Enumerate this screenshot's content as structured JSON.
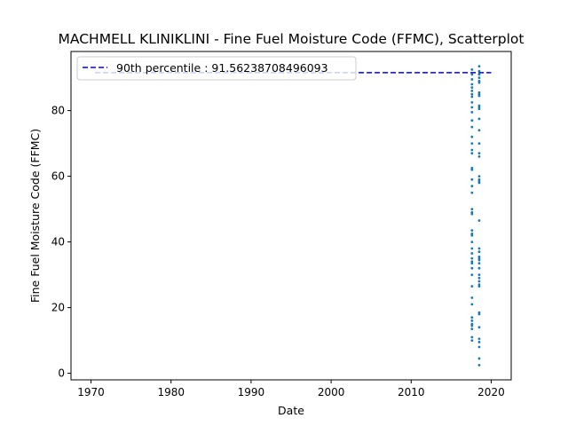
{
  "chart_data": {
    "type": "scatter",
    "title": "MACHMELL KLINIKLINI - Fine Fuel Moisture Code (FFMC), Scatterplot",
    "xlabel": "Date",
    "ylabel": "Fine Fuel Moisture Code (FFMC)",
    "xlim": [
      1967.5,
      2022.5
    ],
    "ylim": [
      -2,
      98
    ],
    "xticks": [
      1970,
      1980,
      1990,
      2000,
      2010,
      2020
    ],
    "yticks": [
      0,
      20,
      40,
      60,
      80
    ],
    "grid": false,
    "legend_position": "top-left",
    "reference_line": {
      "label": "90th percentile : 91.56238708496093",
      "value": 91.56238708496093,
      "x_range": [
        1970.5,
        2020
      ],
      "color": "#0000ff",
      "style": "dashed"
    },
    "series": [
      {
        "color": "#1f77b4",
        "points": [
          [
            2017.6,
            92.5
          ],
          [
            2017.6,
            91.0
          ],
          [
            2017.6,
            89.5
          ],
          [
            2017.6,
            88.0
          ],
          [
            2017.6,
            87.0
          ],
          [
            2017.6,
            86.0
          ],
          [
            2017.6,
            85.0
          ],
          [
            2017.6,
            84.2
          ],
          [
            2017.6,
            82.5
          ],
          [
            2017.6,
            81.0
          ],
          [
            2017.6,
            79.5
          ],
          [
            2017.6,
            77.0
          ],
          [
            2017.6,
            75.0
          ],
          [
            2017.6,
            72.0
          ],
          [
            2017.6,
            70.0
          ],
          [
            2017.6,
            68.0
          ],
          [
            2017.6,
            67.0
          ],
          [
            2017.6,
            62.5
          ],
          [
            2017.6,
            62.0
          ],
          [
            2017.6,
            59.0
          ],
          [
            2017.6,
            57.0
          ],
          [
            2017.6,
            55.0
          ],
          [
            2017.6,
            50.0
          ],
          [
            2017.6,
            49.0
          ],
          [
            2017.6,
            48.5
          ],
          [
            2017.6,
            43.5
          ],
          [
            2017.6,
            42.5
          ],
          [
            2017.6,
            42.0
          ],
          [
            2017.6,
            40.0
          ],
          [
            2017.6,
            38.0
          ],
          [
            2017.6,
            36.5
          ],
          [
            2017.6,
            35.0
          ],
          [
            2017.6,
            34.0
          ],
          [
            2017.6,
            33.5
          ],
          [
            2017.6,
            32.0
          ],
          [
            2017.6,
            30.0
          ],
          [
            2017.6,
            26.5
          ],
          [
            2017.6,
            23.0
          ],
          [
            2017.6,
            21.0
          ],
          [
            2017.6,
            17.0
          ],
          [
            2017.6,
            16.0
          ],
          [
            2017.6,
            15.0
          ],
          [
            2017.6,
            14.5
          ],
          [
            2017.6,
            13.5
          ],
          [
            2017.6,
            11.0
          ],
          [
            2017.6,
            10.0
          ],
          [
            2018.5,
            93.5
          ],
          [
            2018.5,
            92.0
          ],
          [
            2018.5,
            91.0
          ],
          [
            2018.5,
            90.0
          ],
          [
            2018.5,
            89.0
          ],
          [
            2018.5,
            88.5
          ],
          [
            2018.5,
            85.5
          ],
          [
            2018.5,
            85.0
          ],
          [
            2018.5,
            84.5
          ],
          [
            2018.5,
            81.5
          ],
          [
            2018.5,
            81.0
          ],
          [
            2018.5,
            80.5
          ],
          [
            2018.5,
            77.5
          ],
          [
            2018.5,
            74.0
          ],
          [
            2018.5,
            70.0
          ],
          [
            2018.5,
            67.0
          ],
          [
            2018.5,
            66.0
          ],
          [
            2018.5,
            60.0
          ],
          [
            2018.5,
            59.0
          ],
          [
            2018.5,
            58.5
          ],
          [
            2018.5,
            58.0
          ],
          [
            2018.5,
            46.5
          ],
          [
            2018.5,
            38.0
          ],
          [
            2018.5,
            37.0
          ],
          [
            2018.5,
            35.5
          ],
          [
            2018.5,
            35.0
          ],
          [
            2018.5,
            34.5
          ],
          [
            2018.5,
            33.5
          ],
          [
            2018.5,
            32.0
          ],
          [
            2018.5,
            30.0
          ],
          [
            2018.5,
            29.0
          ],
          [
            2018.5,
            28.0
          ],
          [
            2018.5,
            27.0
          ],
          [
            2018.5,
            26.5
          ],
          [
            2018.5,
            18.5
          ],
          [
            2018.5,
            18.0
          ],
          [
            2018.5,
            14.0
          ],
          [
            2018.5,
            10.5
          ],
          [
            2018.5,
            9.5
          ],
          [
            2018.5,
            8.0
          ],
          [
            2018.5,
            4.5
          ],
          [
            2018.5,
            2.5
          ]
        ]
      }
    ]
  }
}
